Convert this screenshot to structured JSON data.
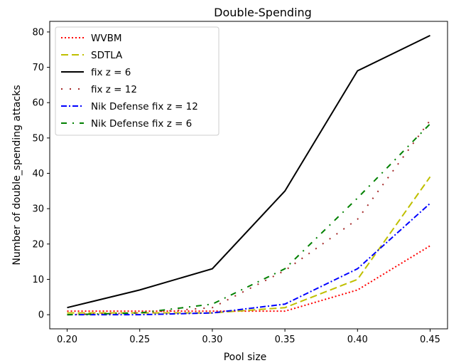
{
  "chart_data": {
    "type": "line",
    "title": "Double-Spending",
    "xlabel": "Pool size",
    "ylabel": "Number of double_spending attacks",
    "xlim": [
      0.188,
      0.462
    ],
    "ylim": [
      -4,
      83
    ],
    "x_ticks": [
      "0.20",
      "0.25",
      "0.30",
      "0.35",
      "0.40",
      "0.45"
    ],
    "y_ticks": [
      "0",
      "10",
      "20",
      "30",
      "40",
      "50",
      "60",
      "70",
      "80"
    ],
    "grid": false,
    "legend_position": "top-left",
    "x": [
      0.2,
      0.25,
      0.3,
      0.35,
      0.4,
      0.45
    ],
    "series": [
      {
        "name": "WVBM",
        "color": "#ff0000",
        "style": "dotted",
        "values": [
          1,
          1,
          1,
          1,
          7,
          19.5
        ]
      },
      {
        "name": "SDTLA",
        "color": "#bfbf00",
        "style": "dashed",
        "values": [
          0.5,
          0.5,
          0.5,
          2,
          10,
          39
        ]
      },
      {
        "name": "fix z = 6",
        "color": "#000000",
        "style": "solid",
        "values": [
          2,
          7,
          13,
          35,
          69,
          79
        ]
      },
      {
        "name": "fix z = 12",
        "color": "#a52a2a",
        "style": "sparse-dotted",
        "values": [
          0,
          0.5,
          2,
          12.5,
          27,
          55
        ]
      },
      {
        "name": "Nik Defense fix z = 12",
        "color": "#0000ff",
        "style": "dashdot",
        "values": [
          0,
          0,
          0.5,
          3,
          13,
          31.5
        ]
      },
      {
        "name": "Nik Defense fix z = 6",
        "color": "#008000",
        "style": "sparse-dashdot",
        "values": [
          0,
          0.5,
          3,
          13,
          33,
          54
        ]
      }
    ]
  }
}
